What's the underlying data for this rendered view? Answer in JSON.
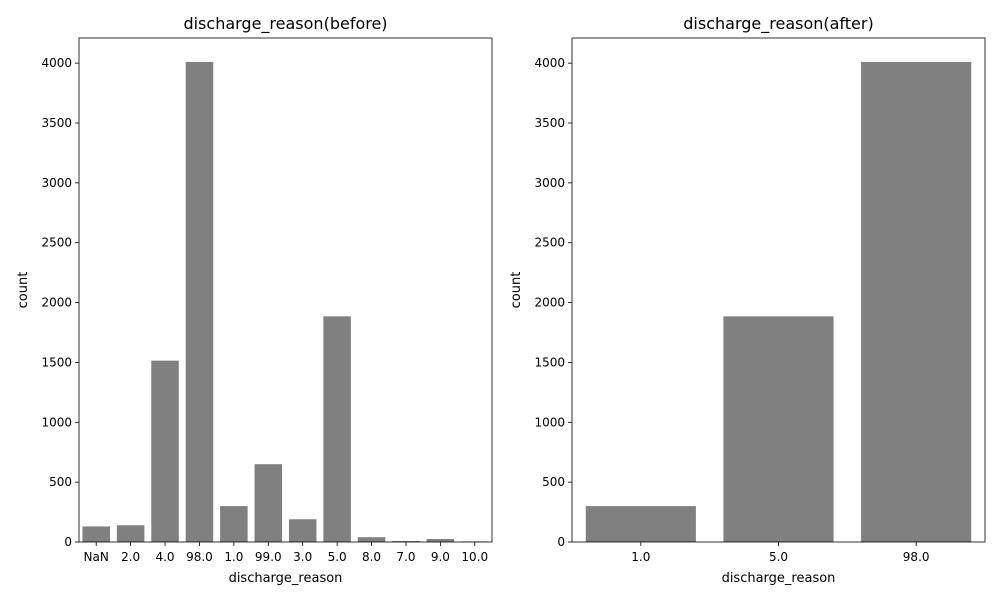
{
  "chart_data": [
    {
      "type": "bar",
      "title": "discharge_reason(before)",
      "xlabel": "discharge_reason",
      "ylabel": "count",
      "categories": [
        "NaN",
        "2.0",
        "4.0",
        "98.0",
        "1.0",
        "99.0",
        "3.0",
        "5.0",
        "8.0",
        "7.0",
        "9.0",
        "10.0"
      ],
      "values": [
        130,
        140,
        1515,
        4010,
        300,
        650,
        190,
        1885,
        40,
        8,
        25,
        5
      ],
      "ylim": [
        0,
        4210
      ],
      "yticks": [
        0,
        500,
        1000,
        1500,
        2000,
        2500,
        3000,
        3500,
        4000
      ],
      "bar_color": "#808080",
      "grid": false
    },
    {
      "type": "bar",
      "title": "discharge_reason(after)",
      "xlabel": "discharge_reason",
      "ylabel": "count",
      "categories": [
        "1.0",
        "5.0",
        "98.0"
      ],
      "values": [
        300,
        1885,
        4010
      ],
      "ylim": [
        0,
        4210
      ],
      "yticks": [
        0,
        500,
        1000,
        1500,
        2000,
        2500,
        3000,
        3500,
        4000
      ],
      "bar_color": "#808080",
      "grid": false
    }
  ]
}
